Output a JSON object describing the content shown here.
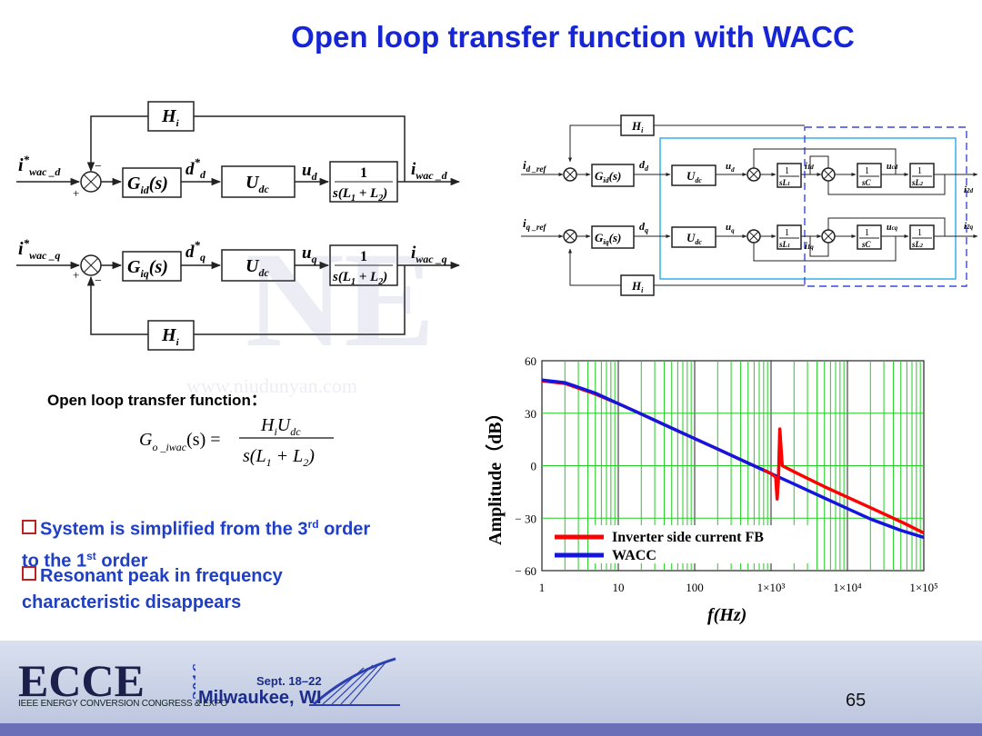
{
  "title": "Open loop transfer function with WACC",
  "left_diagram": {
    "top_input": "i*wac_d",
    "bottom_input": "i*wac_q",
    "hi": "H_i",
    "gid": "G_id(s)",
    "giq": "G_iq(s)",
    "dd": "d*_d",
    "dq": "d*_q",
    "udc": "U_dc",
    "ud": "u_d",
    "uq": "u_q",
    "tf_num": "1",
    "tf_den": "s(L1 + L2)",
    "top_output": "i_wac_d",
    "bottom_output": "i_wac_q"
  },
  "right_diagram": {
    "d_ref": "i_d_ref",
    "q_ref": "i_q_ref",
    "outputs": [
      "i_2d",
      "i_2q"
    ]
  },
  "oltf_label": "Open loop transfer function：",
  "bullets": [
    {
      "text": "System is simplified from the 3rd order to the 1st order"
    },
    {
      "line1a": "System is simplified from the 3",
      "sup1": "rd",
      "line1b": " order",
      "line2a": "to the 1",
      "sup2": "st",
      "line2b": " order"
    },
    {
      "line1": "Resonant peak in frequency",
      "line2": "characteristic disappears"
    }
  ],
  "chart_data": {
    "type": "line",
    "ylabel": "Amplitude（dB）",
    "xlabel": "f(Hz)",
    "x_scale": "log",
    "xlim": [
      1,
      100000
    ],
    "ylim": [
      -60,
      60
    ],
    "yticks": [
      "60",
      "30",
      "0",
      "− 30",
      "− 60"
    ],
    "xticks": [
      "1",
      "10",
      "100",
      "1×10³",
      "1×10⁴",
      "1×10⁵"
    ],
    "grid": true,
    "legend_position": "bottom-right",
    "series": [
      {
        "name": "Inverter side current FB",
        "color": "#ff0000",
        "x": [
          1,
          2,
          5,
          10,
          20,
          50,
          100,
          200,
          500,
          800,
          1000,
          1150,
          1200,
          1250,
          1300,
          1400,
          2000,
          5000,
          10000,
          20000,
          50000,
          100000
        ],
        "y": [
          48.5,
          47,
          41,
          35.5,
          29.5,
          21.5,
          15.5,
          9.5,
          1.5,
          -2.5,
          -4.5,
          -6.5,
          -19,
          -8,
          21,
          0,
          -3.5,
          -12,
          -18,
          -24,
          -32,
          -38.5
        ]
      },
      {
        "name": "WACC",
        "color": "#1515e0",
        "x": [
          1,
          2,
          5,
          10,
          20,
          50,
          100,
          200,
          500,
          1000,
          2000,
          5000,
          10000,
          20000,
          50000,
          100000
        ],
        "y": [
          49,
          47.5,
          41.5,
          35.5,
          29.5,
          21.5,
          15.5,
          9.5,
          1.5,
          -4.5,
          -10.5,
          -18.5,
          -24.5,
          -30.5,
          -37,
          -41
        ]
      }
    ]
  },
  "watermark": "www.niudunyan.com",
  "footer": {
    "logo": "ECCE",
    "year": "2016",
    "conference": "IEEE ENERGY CONVERSION CONGRESS & EXPO",
    "dates": "Sept. 18–22",
    "city": "Milwaukee, WI",
    "page_number": "65"
  },
  "colors": {
    "title": "#1626d6",
    "bullets": "#1f3fc4",
    "grid": "#22cc22",
    "red_series": "#ff0000",
    "blue_series": "#1515e0"
  }
}
